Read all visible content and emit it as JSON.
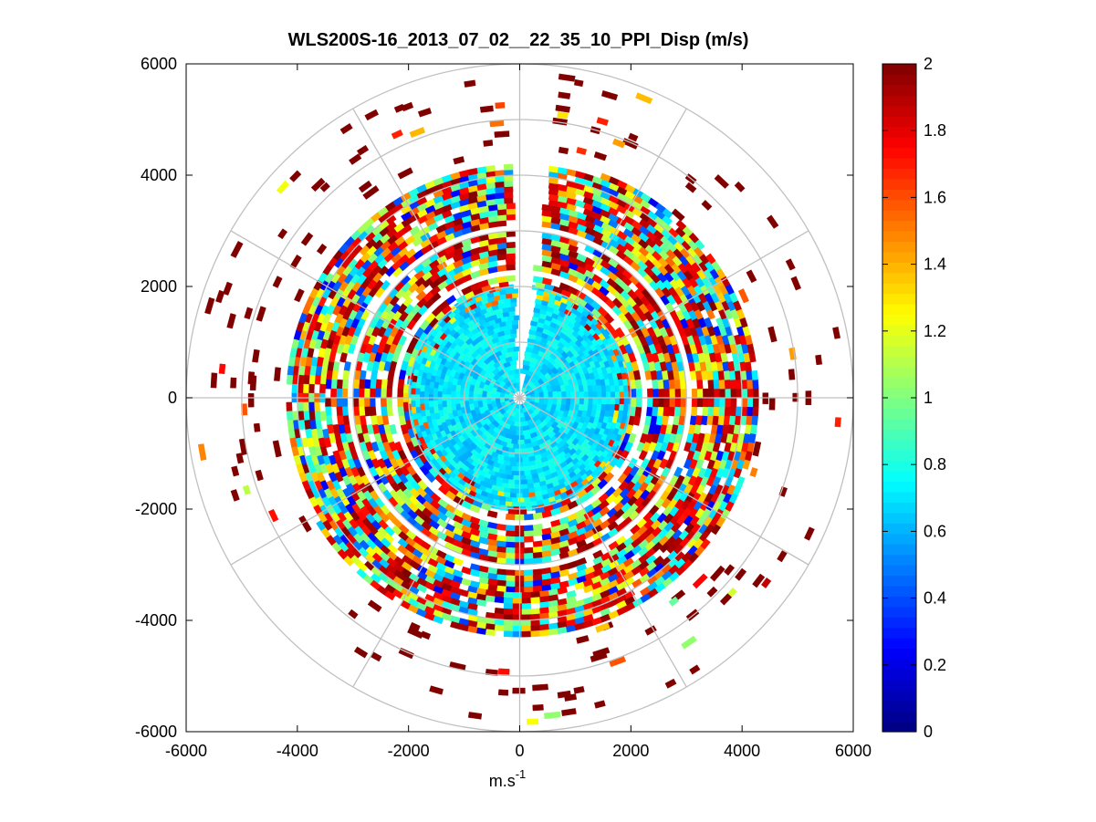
{
  "chart_data": {
    "type": "heatmap",
    "subtype": "polar-ppi",
    "title": "WLS200S-16_2013_07_02__22_35_10_PPI_Disp (m/s)",
    "xlabel": "m.s",
    "xlabel_superscript": "-1",
    "ylabel": "",
    "xlim": [
      -6000,
      6000
    ],
    "ylim": [
      -6000,
      6000
    ],
    "x_ticks": [
      -6000,
      -4000,
      -2000,
      0,
      2000,
      4000,
      6000
    ],
    "y_ticks": [
      6000,
      4000,
      2000,
      0,
      -2000,
      -4000,
      -6000
    ],
    "x_tick_labels": [
      "-6000",
      "-4000",
      "-2000",
      "0",
      "2000",
      "4000",
      "6000"
    ],
    "y_tick_labels": [
      "6000",
      "4000",
      "2000",
      "0",
      "-2000",
      "-4000",
      "-6000"
    ],
    "polar_grid_radii": [
      1000,
      2000,
      3000,
      4000,
      5000,
      6000
    ],
    "polar_grid_angles_deg": [
      0,
      30,
      60,
      90,
      120,
      150,
      180,
      210,
      240,
      270,
      300,
      330
    ],
    "colorbar": {
      "colormap": "jet",
      "min": 0,
      "max": 2,
      "ticks": [
        0,
        0.2,
        0.4,
        0.6,
        0.8,
        1,
        1.2,
        1.4,
        1.6,
        1.8,
        2
      ],
      "tick_labels": [
        "0",
        "0.2",
        "0.4",
        "0.6",
        "0.8",
        "1",
        "1.2",
        "1.4",
        "1.6",
        "1.8",
        "2"
      ]
    },
    "data_description": {
      "missing_sector_deg": [
        -2,
        8
      ],
      "range_zones": [
        {
          "r_min": 0,
          "r_max": 2000,
          "typical_value": 0.7,
          "spread": 0.12
        },
        {
          "r_min": 2000,
          "r_max": 4300,
          "typical_value": 1.4,
          "spread": 0.7
        },
        {
          "r_min": 4300,
          "r_max": 6000,
          "typical_value": 2.0,
          "spread": 0.2,
          "sparse": true
        }
      ]
    }
  }
}
